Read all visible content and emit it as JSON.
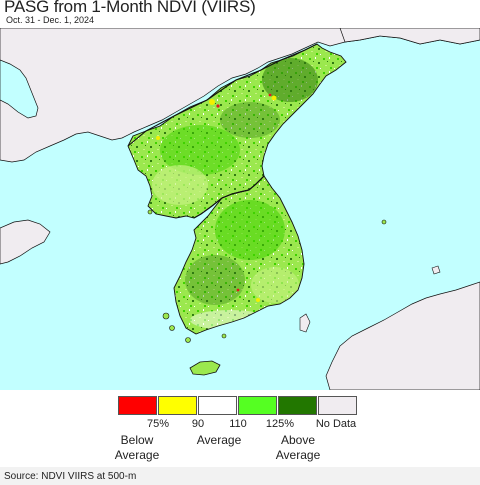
{
  "header": {
    "title": "PASG from 1-Month NDVI (VIIRS)",
    "subtitle": "Oct. 31 - Dec. 1, 2024"
  },
  "map": {
    "colors": {
      "sea": "#c2ffff",
      "foreign_land": "#f0ecf0",
      "land_base": "#9be84e",
      "land_green": "#3fd100",
      "land_dark": "#2f7a10",
      "land_light": "#c6f282",
      "land_white": "#ffffff",
      "land_yellow": "#f2f000",
      "land_red": "#e01a1a",
      "border": "#111111"
    }
  },
  "legend": {
    "swatches": [
      {
        "color": "#ff0000"
      },
      {
        "color": "#ffff00"
      },
      {
        "color": "#ffffff"
      },
      {
        "color": "#55ff22"
      },
      {
        "color": "#227700"
      },
      {
        "color": "#f0ecf0"
      }
    ],
    "ticks": [
      "75%",
      "90",
      "110",
      "125%",
      "No Data"
    ],
    "labels": {
      "below": [
        "Below",
        "Average"
      ],
      "average": "Average",
      "above": [
        "Above",
        "Average"
      ]
    }
  },
  "footer": {
    "source": "Source: NDVI VIIRS at 500-m"
  }
}
